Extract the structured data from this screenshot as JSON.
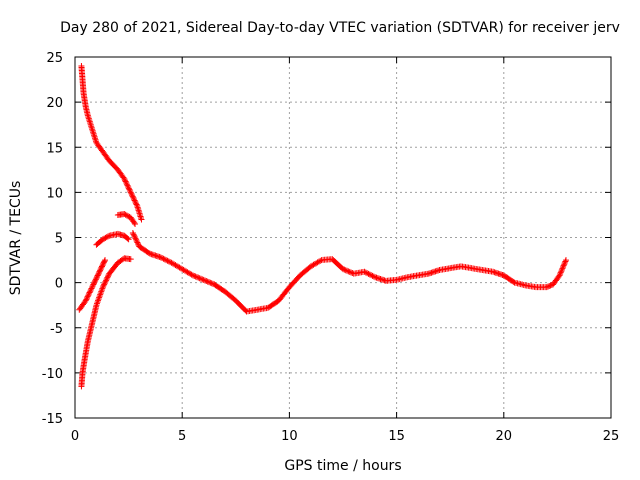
{
  "chart_data": {
    "type": "scatter",
    "title": "Day 280 of 2021, Sidereal Day-to-day VTEC variation (SDTVAR) for receiver jerv",
    "xlabel": "GPS time / hours",
    "ylabel": "SDTVAR / TECUs",
    "xlim": [
      0,
      25
    ],
    "ylim": [
      -15,
      25
    ],
    "xticks": [
      "0",
      "5",
      "10",
      "15",
      "20",
      "25"
    ],
    "yticks": [
      "-15",
      "-10",
      "-5",
      "0",
      "5",
      "10",
      "15",
      "20",
      "25"
    ],
    "grid": true,
    "marker": "+",
    "colors": {
      "series": "#ff0000",
      "grid": "#a0a0a0",
      "frame": "#000000"
    },
    "series": [
      {
        "name": "main-trace",
        "x": [
          2.7,
          3.0,
          3.5,
          4.0,
          4.5,
          5.0,
          5.5,
          6.0,
          6.5,
          7.0,
          7.5,
          8.0,
          8.5,
          9.0,
          9.5,
          10.0,
          10.5,
          11.0,
          11.5,
          12.0,
          12.5,
          13.0,
          13.5,
          14.0,
          14.5,
          15.0,
          15.5,
          16.0,
          16.5,
          17.0,
          17.5,
          18.0,
          18.5,
          19.0,
          19.5,
          20.0,
          20.5,
          21.0,
          21.5,
          22.0,
          22.3,
          22.6,
          22.9
        ],
        "y": [
          5.5,
          4.0,
          3.2,
          2.8,
          2.2,
          1.5,
          0.8,
          0.3,
          -0.2,
          -1.0,
          -2.0,
          -3.2,
          -3.0,
          -2.8,
          -2.0,
          -0.5,
          0.8,
          1.8,
          2.5,
          2.6,
          1.5,
          1.0,
          1.2,
          0.6,
          0.2,
          0.3,
          0.6,
          0.8,
          1.0,
          1.4,
          1.6,
          1.8,
          1.6,
          1.4,
          1.2,
          0.8,
          0.0,
          -0.3,
          -0.5,
          -0.5,
          -0.2,
          0.8,
          2.5
        ]
      },
      {
        "name": "high-start",
        "x": [
          0.3,
          0.35,
          0.4,
          0.5,
          0.6,
          0.8,
          1.0,
          1.3,
          1.6,
          2.0,
          2.3,
          2.6,
          2.9,
          3.1
        ],
        "y": [
          24.0,
          22.5,
          21.0,
          19.5,
          18.5,
          17.0,
          15.5,
          14.5,
          13.5,
          12.5,
          11.5,
          10.0,
          8.5,
          7.0
        ]
      },
      {
        "name": "low-start",
        "x": [
          0.3,
          0.35,
          0.45,
          0.6,
          0.8,
          1.0,
          1.3,
          1.6,
          2.0,
          2.3,
          2.6
        ],
        "y": [
          -11.5,
          -10.0,
          -8.5,
          -6.5,
          -4.5,
          -2.5,
          -0.5,
          1.0,
          2.2,
          2.7,
          2.6
        ]
      },
      {
        "name": "mid-left-start",
        "x": [
          0.2,
          0.5,
          0.8,
          1.0,
          1.2,
          1.4
        ],
        "y": [
          -3.0,
          -2.0,
          -0.5,
          0.5,
          1.5,
          2.5
        ]
      },
      {
        "name": "upper-arc",
        "x": [
          1.0,
          1.3,
          1.6,
          2.0,
          2.3,
          2.5
        ],
        "y": [
          4.2,
          4.8,
          5.2,
          5.4,
          5.2,
          4.8
        ]
      },
      {
        "name": "bump",
        "x": [
          2.0,
          2.3,
          2.6,
          2.8
        ],
        "y": [
          7.5,
          7.6,
          7.2,
          6.5
        ]
      }
    ]
  }
}
